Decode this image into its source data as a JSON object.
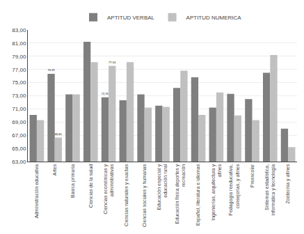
{
  "chart_data": {
    "type": "bar",
    "categories": [
      "Administración educativa",
      "Artes",
      "Básica primaria",
      "Ciencias de la salud",
      "Ciencias económicas y\nadministrativas",
      "Ciencias naturales y exactas",
      "Ciencias sociales y humanas",
      "Educación especial y\neducación rural",
      "Educación física deportes y\nrecreación",
      "Español, literatura e idiomas",
      "Ingenierías, arquitectura y\nafines",
      "Pedagogía reeducativa,\nconsejorías, y afines",
      "Preescolar",
      "Sistemas estadística,\ninformática y tecnología",
      "Zootecnia y afines"
    ],
    "series": [
      {
        "name": "APTITUD VERBAL",
        "color": "#7f7f7f",
        "values": [
          70.1,
          76.33,
          73.2,
          81.2,
          72.76,
          72.3,
          73.2,
          71.5,
          74.2,
          75.8,
          71.2,
          73.3,
          72.5,
          76.5,
          68.0
        ],
        "value_labels": [
          null,
          "76,33",
          null,
          null,
          "72,76",
          null,
          null,
          null,
          null,
          null,
          null,
          null,
          null,
          null,
          null
        ]
      },
      {
        "name": "APTITUD NUMERICA",
        "color": "#c0c0c0",
        "values": [
          69.3,
          66.65,
          73.2,
          78.1,
          77.54,
          78.1,
          71.2,
          71.3,
          76.8,
          70.1,
          73.5,
          70.0,
          69.3,
          79.2,
          65.2
        ],
        "value_labels": [
          null,
          "66,65",
          null,
          null,
          "77,54",
          null,
          null,
          null,
          null,
          null,
          null,
          null,
          null,
          null,
          null
        ]
      }
    ],
    "ylim": [
      63.0,
      83.0
    ],
    "yticks": [
      {
        "value": 63.0,
        "label": "63,00"
      },
      {
        "value": 65.0,
        "label": "65,00"
      },
      {
        "value": 67.0,
        "label": "67,00"
      },
      {
        "value": 69.0,
        "label": "69,00"
      },
      {
        "value": 71.0,
        "label": "71,00"
      },
      {
        "value": 73.0,
        "label": "73,00"
      },
      {
        "value": 75.0,
        "label": "75,00"
      },
      {
        "value": 77.0,
        "label": "77,00"
      },
      {
        "value": 79.0,
        "label": "79,00"
      },
      {
        "value": 81.0,
        "label": "81,00"
      },
      {
        "value": 83.0,
        "label": "83,00"
      }
    ],
    "grid": true,
    "legend": "top",
    "data_labels": true
  }
}
